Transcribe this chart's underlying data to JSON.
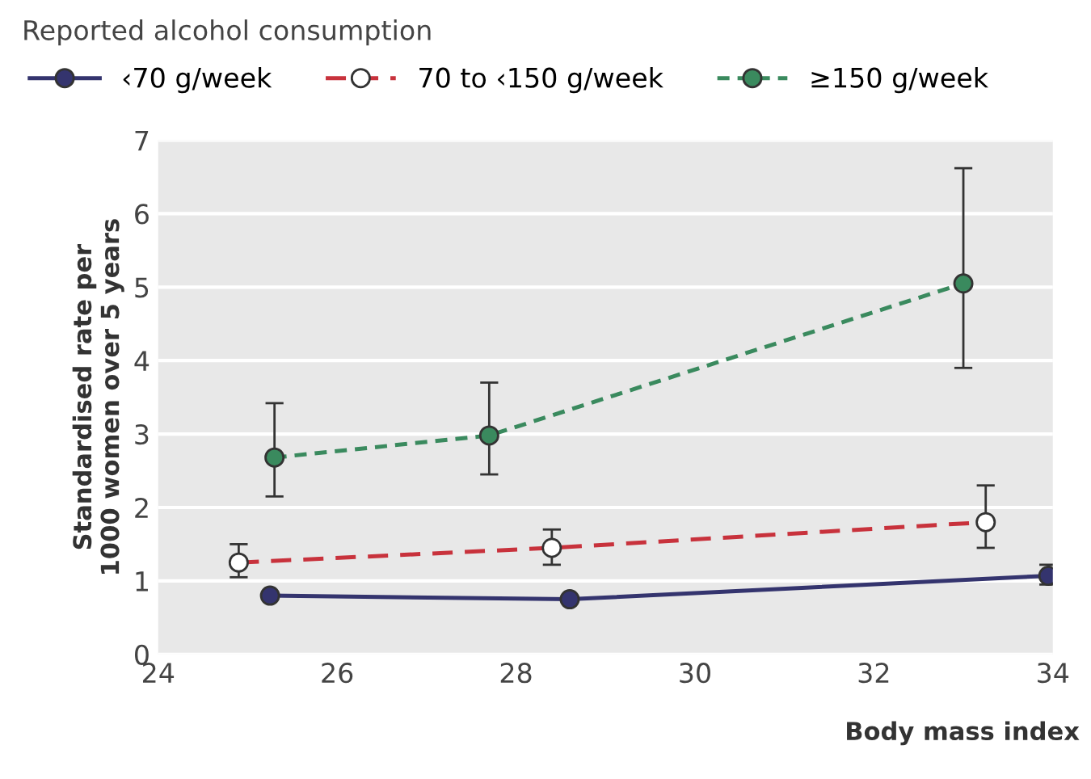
{
  "chart_data": {
    "type": "line",
    "xlabel": "Body mass index",
    "ylabel": "Standardised rate per\n1000 women over 5 years",
    "legend_title": "Reported alcohol consumption",
    "xlim": [
      24,
      34
    ],
    "xticks": [
      24,
      26,
      28,
      30,
      32,
      34
    ],
    "ylim": [
      0,
      7
    ],
    "yticks": [
      0,
      1,
      2,
      3,
      4,
      5,
      6,
      7
    ],
    "grid": "y",
    "legend": "top left",
    "marker": "circle",
    "series": [
      {
        "name": "‹70 g/week",
        "color": "#34346e",
        "line_style": "solid",
        "x": [
          25.25,
          28.6,
          33.95
        ],
        "values": [
          0.8,
          0.75,
          1.07
        ],
        "errors": [
          null,
          null,
          [
            0.95,
            1.22
          ]
        ]
      },
      {
        "name": "70 to ‹150 g/week",
        "color": "#c8323c",
        "line_style": "dashed",
        "x": [
          24.9,
          28.4,
          33.25
        ],
        "values": [
          1.25,
          1.45,
          1.8
        ],
        "errors": [
          [
            1.05,
            1.5
          ],
          [
            1.22,
            1.7
          ],
          [
            1.45,
            2.3
          ]
        ]
      },
      {
        "name": "≥150 g/week",
        "color": "#3a8a5e",
        "line_style": "dotted",
        "x": [
          25.3,
          27.7,
          33.0
        ],
        "values": [
          2.68,
          2.98,
          5.05
        ],
        "errors": [
          [
            2.15,
            3.42
          ],
          [
            2.45,
            3.7
          ],
          [
            3.9,
            6.62
          ]
        ]
      }
    ]
  }
}
